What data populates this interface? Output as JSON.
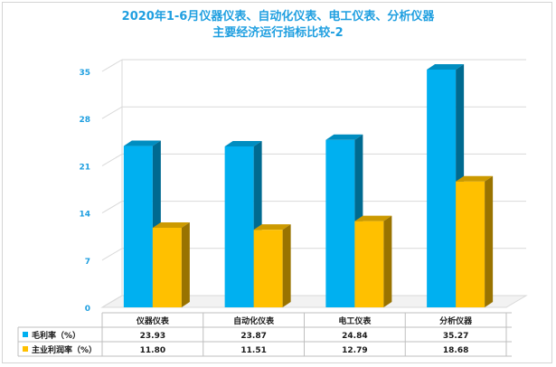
{
  "title_line1": "2020年1-6月仪器仪表、自动化仪表、电工仪表、分析仪器",
  "title_line2": "主要经济运行指标比较-2",
  "chart_data": {
    "type": "bar",
    "categories": [
      "仪器仪表",
      "自动化仪表",
      "电工仪表",
      "分析仪器"
    ],
    "series": [
      {
        "name": "毛利率（%）",
        "values": [
          23.93,
          23.87,
          24.84,
          35.27
        ],
        "color": "#00b0f0"
      },
      {
        "name": "主业利润率（%）",
        "values": [
          11.8,
          11.51,
          12.79,
          18.68
        ],
        "color": "#ffc000"
      }
    ],
    "value_labels": [
      [
        "23.93",
        "23.87",
        "24.84",
        "35.27"
      ],
      [
        "11.80",
        "11.51",
        "12.79",
        "18.68"
      ]
    ],
    "yticks": [
      "0",
      "7",
      "14",
      "21",
      "28",
      "35"
    ],
    "ylim": [
      0,
      35
    ],
    "grid": true,
    "legend": "data-table-below"
  }
}
